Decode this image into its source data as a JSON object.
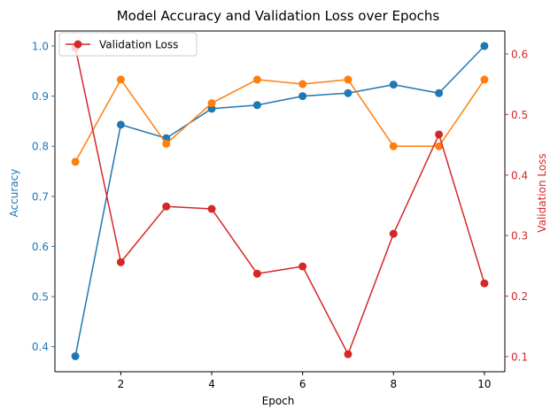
{
  "chart_data": {
    "type": "line",
    "title": "Model Accuracy and Validation Loss over Epochs",
    "xlabel": "Epoch",
    "ylabel_left": "Accuracy",
    "ylabel_right": "Validation Loss",
    "x": [
      1,
      2,
      3,
      4,
      5,
      6,
      7,
      8,
      9,
      10
    ],
    "xlim": [
      0.55,
      10.45
    ],
    "xticks": [
      2,
      4,
      6,
      8,
      10
    ],
    "ylim_left": [
      0.35,
      1.03
    ],
    "yticks_left": [
      0.4,
      0.5,
      0.6,
      0.7,
      0.8,
      0.9,
      1.0
    ],
    "ylim_right": [
      0.075,
      0.638
    ],
    "yticks_right": [
      0.1,
      0.2,
      0.3,
      0.4,
      0.5,
      0.6
    ],
    "grid": false,
    "legend_position": "upper left",
    "series": [
      {
        "axis": "left",
        "color": "#1f77b4",
        "values": [
          0.381,
          0.843,
          0.816,
          0.875,
          0.882,
          0.9,
          0.906,
          0.923,
          0.906,
          1.0
        ]
      },
      {
        "axis": "left",
        "color": "#ff7f0e",
        "values": [
          0.769,
          0.933,
          0.805,
          0.886,
          0.933,
          0.924,
          0.933,
          0.8,
          0.8,
          0.933
        ]
      },
      {
        "axis": "right",
        "name": "Validation Loss",
        "color": "#d62728",
        "values": [
          0.61,
          0.256,
          0.348,
          0.344,
          0.237,
          0.249,
          0.104,
          0.303,
          0.467,
          0.221
        ]
      }
    ],
    "legend": [
      {
        "label": "Validation Loss",
        "color": "#d62728"
      }
    ],
    "colors": {
      "left_axis": "#1f77b4",
      "right_axis": "#d62728"
    }
  }
}
